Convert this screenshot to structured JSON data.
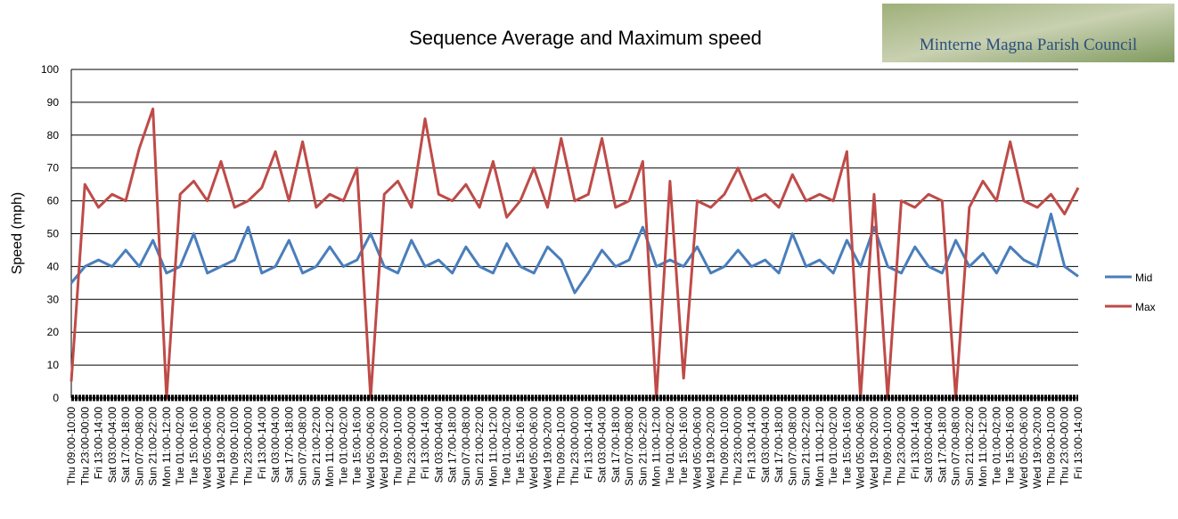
{
  "chart_data": {
    "type": "line",
    "title": "Sequence Average and Maximum speed",
    "logo_text": "Minterne Magna Parish Council",
    "y_label": "Speed (mph)",
    "categories": [
      "Thu 09:00-10:00",
      "Thu 23:00-00:00",
      "Fri 13:00-14:00",
      "Sat 03:00-04:00",
      "Sat 17:00-18:00",
      "Sun 07:00-08:00",
      "Sun 21:00-22:00",
      "Mon 11:00-12:00",
      "Tue 01:00-02:00",
      "Tue 15:00-16:00",
      "Wed 05:00-06:00",
      "Wed 19:00-20:00",
      "Thu 09:00-10:00",
      "Thu 23:00-00:00",
      "Fri 13:00-14:00",
      "Sat 03:00-04:00",
      "Sat 17:00-18:00",
      "Sun 07:00-08:00",
      "Sun 21:00-22:00",
      "Mon 11:00-12:00",
      "Tue 01:00-02:00",
      "Tue 15:00-16:00",
      "Wed 05:00-06:00",
      "Wed 19:00-20:00",
      "Thu 09:00-10:00",
      "Thu 23:00-00:00",
      "Fri 13:00-14:00",
      "Sat 03:00-04:00",
      "Sat 17:00-18:00",
      "Sun 07:00-08:00",
      "Sun 21:00-22:00",
      "Mon 11:00-12:00",
      "Tue 01:00-02:00",
      "Tue 15:00-16:00",
      "Wed 05:00-06:00",
      "Wed 19:00-20:00",
      "Thu 09:00-10:00",
      "Thu 23:00-00:00",
      "Fri 13:00-14:00",
      "Sat 03:00-04:00",
      "Sat 17:00-18:00",
      "Sun 07:00-08:00",
      "Sun 21:00-22:00",
      "Mon 11:00-12:00",
      "Tue 01:00-02:00",
      "Tue 15:00-16:00",
      "Wed 05:00-06:00",
      "Wed 19:00-20:00",
      "Thu 09:00-10:00",
      "Thu 23:00-00:00",
      "Fri 13:00-14:00",
      "Sat 03:00-04:00",
      "Sat 17:00-18:00",
      "Sun 07:00-08:00",
      "Sun 21:00-22:00",
      "Mon 11:00-12:00",
      "Tue 01:00-02:00",
      "Tue 15:00-16:00",
      "Wed 05:00-06:00",
      "Wed 19:00-20:00",
      "Thu 09:00-10:00",
      "Thu 23:00-00:00",
      "Fri 13:00-14:00",
      "Sat 03:00-04:00",
      "Sat 17:00-18:00",
      "Sun 07:00-08:00",
      "Sun 21:00-22:00",
      "Mon 11:00-12:00",
      "Tue 01:00-02:00",
      "Tue 15:00-16:00",
      "Wed 05:00-06:00",
      "Wed 19:00-20:00",
      "Thu 09:00-10:00",
      "Thu 23:00-00:00",
      "Fri 13:00-14:00"
    ],
    "series": [
      {
        "name": "Mid",
        "color": "#4a7ebb",
        "values": [
          35,
          40,
          42,
          40,
          45,
          40,
          48,
          38,
          40,
          50,
          38,
          40,
          42,
          52,
          38,
          40,
          48,
          38,
          40,
          46,
          40,
          42,
          50,
          40,
          38,
          48,
          40,
          42,
          38,
          46,
          40,
          38,
          47,
          40,
          38,
          46,
          42,
          32,
          38,
          45,
          40,
          42,
          52,
          40,
          42,
          40,
          46,
          38,
          40,
          45,
          40,
          42,
          38,
          50,
          40,
          42,
          38,
          48,
          40,
          52,
          40,
          38,
          46,
          40,
          38,
          48,
          40,
          44,
          38,
          46,
          42,
          40,
          56,
          40,
          37
        ]
      },
      {
        "name": "Max",
        "color": "#be4b48",
        "values": [
          5,
          65,
          58,
          62,
          60,
          76,
          88,
          0,
          62,
          66,
          60,
          72,
          58,
          60,
          64,
          75,
          60,
          78,
          58,
          62,
          60,
          70,
          0,
          62,
          66,
          58,
          85,
          62,
          60,
          65,
          58,
          72,
          55,
          60,
          70,
          58,
          79,
          60,
          62,
          79,
          58,
          60,
          72,
          0,
          66,
          6,
          60,
          58,
          62,
          70,
          60,
          62,
          58,
          68,
          60,
          62,
          60,
          75,
          0,
          62,
          0,
          60,
          58,
          62,
          60,
          0,
          58,
          66,
          60,
          78,
          60,
          58,
          62,
          56,
          64
        ]
      }
    ],
    "ylim": [
      0,
      100
    ],
    "yticks": [
      0,
      10,
      20,
      30,
      40,
      50,
      60,
      70,
      80,
      90,
      100
    ],
    "grid": true,
    "legend": "right"
  }
}
